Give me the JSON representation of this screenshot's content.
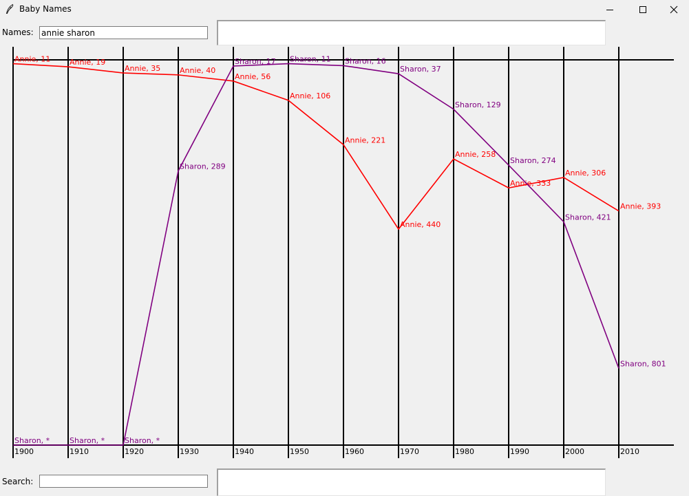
{
  "window": {
    "title": "Baby Names",
    "icon": "feather-icon",
    "controls": [
      "minimize-icon",
      "maximize-icon",
      "close-icon"
    ]
  },
  "names_field": {
    "label": "Names:",
    "value": "annie sharon"
  },
  "search_field": {
    "label": "Search:",
    "value": ""
  },
  "chart_data": {
    "type": "line",
    "note_rank": "vertical position = popularity rank (1 at top, 1000 at bottom); * = not ranked",
    "x": [
      "1900",
      "1910",
      "1920",
      "1930",
      "1940",
      "1950",
      "1960",
      "1970",
      "1980",
      "1990",
      "2000",
      "2010"
    ],
    "series": [
      {
        "name": "Annie",
        "color": "#ff0000",
        "ranks": [
          11,
          19,
          35,
          40,
          56,
          106,
          221,
          440,
          258,
          333,
          306,
          393
        ],
        "labels": [
          "Annie, 11",
          "Annie, 19",
          "Annie, 35",
          "Annie, 40",
          "Annie, 56",
          "Annie, 106",
          "Annie, 221",
          "Annie, 440",
          "Annie, 258",
          "Annie, 333",
          "Annie, 306",
          "Annie, 393"
        ]
      },
      {
        "name": "Sharon",
        "color": "#800080",
        "ranks": [
          null,
          null,
          null,
          289,
          17,
          11,
          16,
          37,
          129,
          274,
          421,
          801
        ],
        "labels": [
          "Sharon, *",
          "Sharon, *",
          "Sharon, *",
          "Sharon, 289",
          "Sharon, 17",
          "Sharon, 11",
          "Sharon, 16",
          "Sharon, 37",
          "Sharon, 129",
          "Sharon, 274",
          "Sharon, 421",
          "Sharon, 801"
        ]
      }
    ]
  }
}
